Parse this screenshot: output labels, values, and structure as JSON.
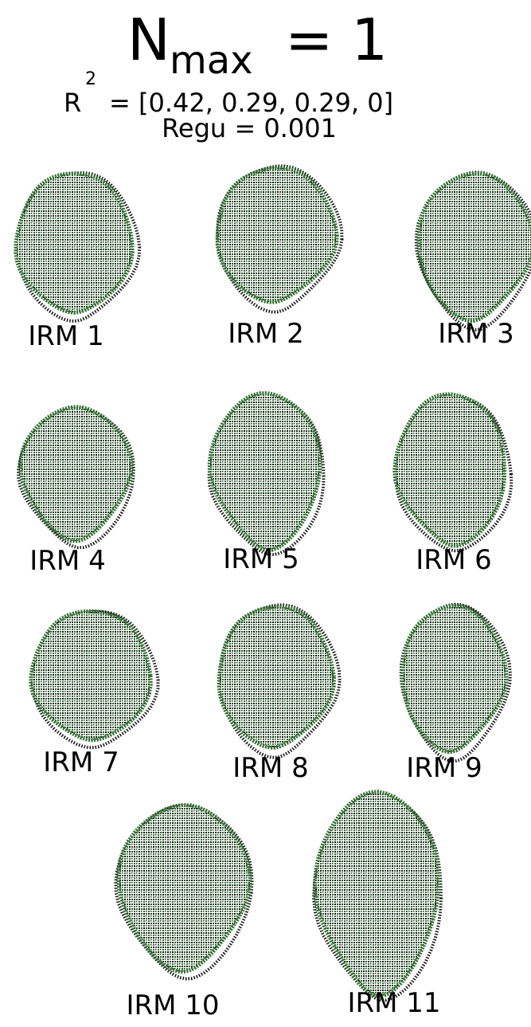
{
  "header": {
    "title": {
      "main": "N",
      "subscript": "max",
      "rest": "= 1"
    },
    "r2": {
      "symbol": "R",
      "superscript": "2",
      "rest": "= [0.42, 0.29, 0.29, 0]"
    },
    "regu": "Regu = 0.001"
  },
  "panels": [
    {
      "label": "IRM 1"
    },
    {
      "label": "IRM 2"
    },
    {
      "label": "IRM 3"
    },
    {
      "label": "IRM 4"
    },
    {
      "label": "IRM 5"
    },
    {
      "label": "IRM 6"
    },
    {
      "label": "IRM 7"
    },
    {
      "label": "IRM 8"
    },
    {
      "label": "IRM 9"
    },
    {
      "label": "IRM 10"
    },
    {
      "label": "IRM 11"
    }
  ]
}
